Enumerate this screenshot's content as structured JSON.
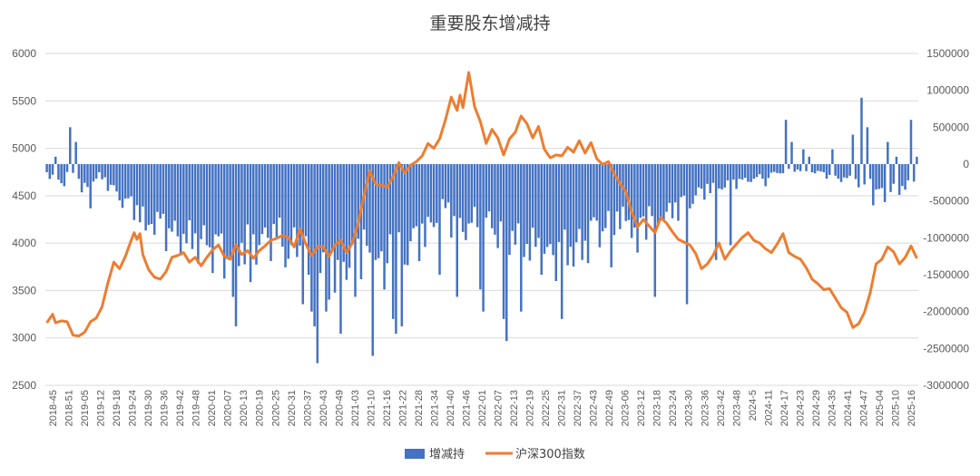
{
  "chart_data": {
    "type": "bar+line",
    "title": "重要股东增减持",
    "left_axis": {
      "min": 2500,
      "max": 6000,
      "step": 500,
      "ticks": [
        "2500",
        "3000",
        "3500",
        "4000",
        "4500",
        "5000",
        "5500",
        "6000"
      ]
    },
    "right_axis": {
      "min": -3000000,
      "max": 1500000,
      "step": 500000,
      "ticks": [
        "-3000000",
        "-2500000",
        "-2000000",
        "-1500000",
        "-1000000",
        "-500000",
        "0",
        "500000",
        "1000000",
        "1500000"
      ]
    },
    "x_labels": [
      "2018-45",
      "2018-51",
      "2019-05",
      "2019-12",
      "2019-18",
      "2019-24",
      "2019-30",
      "2019-36",
      "2019-42",
      "2019-48",
      "2020-01",
      "2020-07",
      "2020-13",
      "2020-19",
      "2020-25",
      "2020-31",
      "2020-37",
      "2020-43",
      "2020-49",
      "2021-03",
      "2021-10",
      "2021-16",
      "2021-22",
      "2021-28",
      "2021-34",
      "2021-40",
      "2021-46",
      "2022-01",
      "2022-07",
      "2022-13",
      "2022-19",
      "2022-25",
      "2022-31",
      "2022-37",
      "2022-43",
      "2022-49",
      "2023-06",
      "2023-12",
      "2023-18",
      "2023-24",
      "2023-30",
      "2023-36",
      "2023-42",
      "2023-48",
      "2024-5",
      "2024-11",
      "2024-17",
      "2024-23",
      "2024-29",
      "2024-35",
      "2024-41",
      "2024-47",
      "2025-04",
      "2025-10",
      "2025-16"
    ],
    "legend_position": "bottom",
    "series": [
      {
        "name": "增减持",
        "type": "bar",
        "axis": "right",
        "color": "#4472C4",
        "keyframes": [
          [
            0,
            -200000
          ],
          [
            5,
            -300000
          ],
          [
            8,
            -100000
          ],
          [
            12,
            -500000
          ],
          [
            18,
            -200000
          ],
          [
            25,
            -600000
          ],
          [
            32,
            -900000
          ],
          [
            38,
            -1100000
          ],
          [
            44,
            -1300000
          ],
          [
            50,
            -1400000
          ],
          [
            56,
            -1500000
          ],
          [
            62,
            -1700000
          ],
          [
            68,
            -1500000
          ],
          [
            74,
            -1400000
          ],
          [
            80,
            -1300000
          ],
          [
            86,
            -1600000
          ],
          [
            92,
            -1900000
          ],
          [
            98,
            -2000000
          ],
          [
            104,
            -1700000
          ],
          [
            110,
            -1500000
          ],
          [
            116,
            -1600000
          ],
          [
            120,
            -1700000
          ],
          [
            125,
            -1500000
          ],
          [
            130,
            -1300000
          ],
          [
            136,
            -800000
          ],
          [
            142,
            -1200000
          ],
          [
            148,
            -1000000
          ],
          [
            154,
            -1200000
          ],
          [
            160,
            -1300000
          ],
          [
            166,
            -1500000
          ],
          [
            172,
            -1700000
          ],
          [
            178,
            -1600000
          ],
          [
            184,
            -1500000
          ],
          [
            190,
            -1200000
          ],
          [
            196,
            -1000000
          ],
          [
            202,
            -1100000
          ],
          [
            208,
            -1000000
          ],
          [
            214,
            -900000
          ],
          [
            220,
            -700000
          ],
          [
            226,
            -500000
          ],
          [
            232,
            -400000
          ],
          [
            240,
            -300000
          ],
          [
            248,
            -200000
          ],
          [
            256,
            -100000
          ],
          [
            264,
            -150000
          ],
          [
            272,
            -250000
          ],
          [
            278,
            -300000
          ],
          [
            284,
            -600000
          ],
          [
            290,
            -500000
          ],
          [
            296,
            -400000
          ],
          [
            300,
            -300000
          ]
        ],
        "spikes": [
          [
            3,
            100000
          ],
          [
            6,
            -300000
          ],
          [
            8,
            500000
          ],
          [
            10,
            300000
          ],
          [
            11,
            -200000
          ],
          [
            15,
            -600000
          ],
          [
            34,
            -900000
          ],
          [
            55,
            -1100000
          ],
          [
            63,
            -1300000
          ],
          [
            64,
            -1800000
          ],
          [
            65,
            -2200000
          ],
          [
            70,
            -1600000
          ],
          [
            76,
            -1000000
          ],
          [
            82,
            -1400000
          ],
          [
            88,
            -1900000
          ],
          [
            90,
            -1500000
          ],
          [
            91,
            -2000000
          ],
          [
            92,
            -2200000
          ],
          [
            93,
            -2700000
          ],
          [
            96,
            -2000000
          ],
          [
            100,
            -1300000
          ],
          [
            101,
            -2300000
          ],
          [
            106,
            -1800000
          ],
          [
            111,
            -1200000
          ],
          [
            112,
            -2600000
          ],
          [
            116,
            -1700000
          ],
          [
            119,
            -2100000
          ],
          [
            120,
            -2300000
          ],
          [
            122,
            -2200000
          ],
          [
            135,
            -1500000
          ],
          [
            141,
            -1800000
          ],
          [
            149,
            -1700000
          ],
          [
            150,
            -2000000
          ],
          [
            157,
            -2100000
          ],
          [
            158,
            -2400000
          ],
          [
            163,
            -2000000
          ],
          [
            170,
            -1500000
          ],
          [
            177,
            -2100000
          ],
          [
            184,
            -1300000
          ],
          [
            194,
            -1400000
          ],
          [
            203,
            -1200000
          ],
          [
            209,
            -1800000
          ],
          [
            220,
            -1900000
          ],
          [
            230,
            -1300000
          ],
          [
            235,
            -1100000
          ],
          [
            247,
            -300000
          ],
          [
            254,
            600000
          ],
          [
            256,
            300000
          ],
          [
            260,
            200000
          ],
          [
            262,
            100000
          ],
          [
            266,
            -100000
          ],
          [
            270,
            200000
          ],
          [
            277,
            400000
          ],
          [
            280,
            900000
          ],
          [
            282,
            500000
          ],
          [
            283,
            -200000
          ],
          [
            289,
            300000
          ],
          [
            292,
            100000
          ],
          [
            297,
            600000
          ],
          [
            299,
            100000
          ]
        ]
      },
      {
        "name": "沪深300指数",
        "type": "line",
        "axis": "left",
        "color": "#ED7D31",
        "keyframes": [
          [
            0,
            3160
          ],
          [
            2,
            3250
          ],
          [
            3,
            3160
          ],
          [
            5,
            3180
          ],
          [
            7,
            3170
          ],
          [
            9,
            3030
          ],
          [
            11,
            3020
          ],
          [
            13,
            3060
          ],
          [
            15,
            3170
          ],
          [
            17,
            3210
          ],
          [
            19,
            3330
          ],
          [
            21,
            3580
          ],
          [
            23,
            3800
          ],
          [
            25,
            3730
          ],
          [
            27,
            3860
          ],
          [
            29,
            4030
          ],
          [
            30,
            4110
          ],
          [
            31,
            4040
          ],
          [
            32,
            4100
          ],
          [
            33,
            3880
          ],
          [
            35,
            3720
          ],
          [
            37,
            3640
          ],
          [
            39,
            3620
          ],
          [
            41,
            3700
          ],
          [
            43,
            3850
          ],
          [
            45,
            3870
          ],
          [
            47,
            3900
          ],
          [
            49,
            3800
          ],
          [
            51,
            3850
          ],
          [
            53,
            3760
          ],
          [
            55,
            3850
          ],
          [
            57,
            3930
          ],
          [
            59,
            3980
          ],
          [
            61,
            3860
          ],
          [
            63,
            3830
          ],
          [
            65,
            3980
          ],
          [
            67,
            3880
          ],
          [
            69,
            3920
          ],
          [
            71,
            3840
          ],
          [
            73,
            3920
          ],
          [
            75,
            3970
          ],
          [
            77,
            4030
          ],
          [
            79,
            4050
          ],
          [
            81,
            4080
          ],
          [
            83,
            4060
          ],
          [
            85,
            3960
          ],
          [
            87,
            4150
          ],
          [
            89,
            3990
          ],
          [
            91,
            3870
          ],
          [
            93,
            3960
          ],
          [
            95,
            3960
          ],
          [
            97,
            3860
          ],
          [
            99,
            3980
          ],
          [
            101,
            4030
          ],
          [
            103,
            3900
          ],
          [
            105,
            4000
          ],
          [
            107,
            4210
          ],
          [
            109,
            4500
          ],
          [
            111,
            4760
          ],
          [
            113,
            4620
          ],
          [
            115,
            4610
          ],
          [
            117,
            4590
          ],
          [
            119,
            4700
          ],
          [
            121,
            4850
          ],
          [
            123,
            4740
          ],
          [
            125,
            4820
          ],
          [
            127,
            4860
          ],
          [
            129,
            4920
          ],
          [
            131,
            5050
          ],
          [
            133,
            5000
          ],
          [
            135,
            5100
          ],
          [
            137,
            5300
          ],
          [
            139,
            5540
          ],
          [
            141,
            5400
          ],
          [
            142,
            5560
          ],
          [
            143,
            5430
          ],
          [
            145,
            5800
          ],
          [
            147,
            5440
          ],
          [
            149,
            5280
          ],
          [
            151,
            5050
          ],
          [
            153,
            5200
          ],
          [
            155,
            5110
          ],
          [
            157,
            4930
          ],
          [
            159,
            5100
          ],
          [
            161,
            5170
          ],
          [
            163,
            5340
          ],
          [
            165,
            5260
          ],
          [
            167,
            5110
          ],
          [
            169,
            5230
          ],
          [
            171,
            4990
          ],
          [
            173,
            4900
          ],
          [
            175,
            4930
          ],
          [
            177,
            4920
          ],
          [
            179,
            5010
          ],
          [
            181,
            4960
          ],
          [
            183,
            5080
          ],
          [
            185,
            4950
          ],
          [
            187,
            5060
          ],
          [
            189,
            4890
          ],
          [
            191,
            4830
          ],
          [
            193,
            4860
          ],
          [
            195,
            4730
          ],
          [
            197,
            4630
          ],
          [
            199,
            4540
          ],
          [
            201,
            4330
          ],
          [
            203,
            4170
          ],
          [
            205,
            4250
          ],
          [
            207,
            4180
          ],
          [
            209,
            4110
          ],
          [
            211,
            4270
          ],
          [
            213,
            4210
          ],
          [
            215,
            4120
          ],
          [
            217,
            4040
          ],
          [
            219,
            4010
          ],
          [
            221,
            3980
          ],
          [
            223,
            3890
          ],
          [
            225,
            3730
          ],
          [
            227,
            3780
          ],
          [
            229,
            3870
          ],
          [
            231,
            4000
          ],
          [
            233,
            3830
          ],
          [
            235,
            3920
          ],
          [
            237,
            3990
          ],
          [
            239,
            4060
          ],
          [
            241,
            4110
          ],
          [
            243,
            4030
          ],
          [
            245,
            4000
          ],
          [
            247,
            3940
          ],
          [
            249,
            3900
          ],
          [
            251,
            3990
          ],
          [
            253,
            4100
          ],
          [
            255,
            3900
          ],
          [
            257,
            3860
          ],
          [
            259,
            3830
          ],
          [
            261,
            3740
          ],
          [
            263,
            3620
          ],
          [
            265,
            3570
          ],
          [
            267,
            3510
          ],
          [
            269,
            3520
          ],
          [
            271,
            3420
          ],
          [
            273,
            3320
          ],
          [
            275,
            3270
          ],
          [
            277,
            3110
          ],
          [
            279,
            3150
          ],
          [
            281,
            3270
          ],
          [
            283,
            3480
          ],
          [
            285,
            3780
          ],
          [
            287,
            3830
          ],
          [
            289,
            3960
          ],
          [
            291,
            3910
          ],
          [
            293,
            3780
          ],
          [
            295,
            3850
          ],
          [
            297,
            3970
          ],
          [
            299,
            3840
          ],
          [
            300,
            3830
          ]
        ]
      }
    ]
  }
}
